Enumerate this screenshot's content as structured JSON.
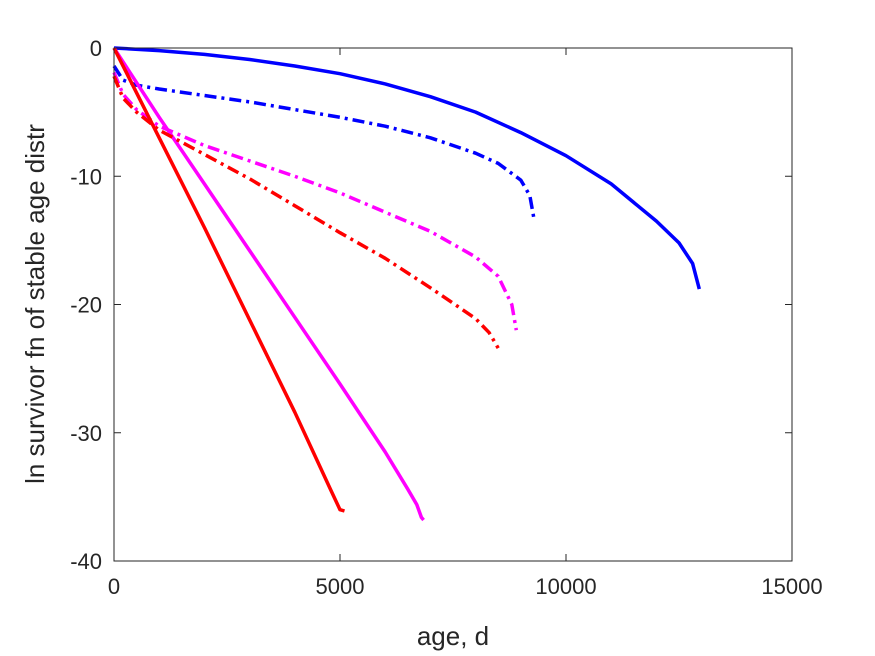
{
  "chart_data": {
    "type": "line",
    "xlabel": "age, d",
    "ylabel": "ln survivor fn of stable age distr",
    "xlim": [
      0,
      15000
    ],
    "ylim": [
      -40,
      0
    ],
    "xticks": [
      0,
      5000,
      10000,
      15000
    ],
    "yticks": [
      0,
      -10,
      -20,
      -30,
      -40
    ],
    "xtick_labels": [
      "0",
      "5000",
      "10000",
      "15000"
    ],
    "ytick_labels": [
      "0",
      "-10",
      "-20",
      "-30",
      "-40"
    ],
    "grid": false,
    "legend": "none",
    "series": [
      {
        "color": "#0000ff",
        "style": "solid",
        "x": [
          0,
          1000,
          2000,
          3000,
          4000,
          5000,
          6000,
          7000,
          8000,
          9000,
          10000,
          11000,
          12000,
          12500,
          12800,
          12950
        ],
        "y": [
          0,
          -0.2,
          -0.5,
          -0.9,
          -1.4,
          -2.0,
          -2.8,
          -3.8,
          -5.0,
          -6.6,
          -8.4,
          -10.6,
          -13.5,
          -15.2,
          -16.8,
          -18.8
        ]
      },
      {
        "color": "#0000ff",
        "style": "dashdot",
        "x": [
          0,
          200,
          500,
          1000,
          2000,
          3000,
          4000,
          5000,
          6000,
          7000,
          8000,
          8500,
          9000,
          9200,
          9300
        ],
        "y": [
          -1.4,
          -2.5,
          -2.9,
          -3.2,
          -3.7,
          -4.2,
          -4.8,
          -5.4,
          -6.1,
          -7.0,
          -8.2,
          -9.0,
          -10.3,
          -11.5,
          -13.5
        ]
      },
      {
        "color": "#ff00ff",
        "style": "solid",
        "x": [
          0,
          1000,
          2000,
          3000,
          4000,
          5000,
          6000,
          6500,
          6700,
          6800,
          6850
        ],
        "y": [
          0,
          -5.4,
          -10.6,
          -15.8,
          -21.0,
          -26.2,
          -31.5,
          -34.4,
          -35.6,
          -36.6,
          -36.8
        ]
      },
      {
        "color": "#ff00ff",
        "style": "dashdot",
        "x": [
          0,
          200,
          500,
          1000,
          2000,
          3000,
          4000,
          5000,
          6000,
          7000,
          8000,
          8500,
          8800,
          8900
        ],
        "y": [
          -1.9,
          -3.6,
          -4.8,
          -6.1,
          -7.6,
          -8.8,
          -10.0,
          -11.3,
          -12.8,
          -14.3,
          -16.3,
          -17.8,
          -20.0,
          -22.0
        ]
      },
      {
        "color": "#ff0000",
        "style": "solid",
        "x": [
          0,
          1000,
          2000,
          3000,
          4000,
          4800,
          5000,
          5100
        ],
        "y": [
          0,
          -7.0,
          -14.0,
          -21.2,
          -28.4,
          -34.5,
          -36.0,
          -36.1
        ]
      },
      {
        "color": "#ff0000",
        "style": "dashdot",
        "x": [
          0,
          200,
          500,
          1000,
          2000,
          3000,
          4000,
          5000,
          6000,
          7000,
          8000,
          8300,
          8500
        ],
        "y": [
          -2.2,
          -3.9,
          -5.0,
          -6.4,
          -8.3,
          -10.2,
          -12.3,
          -14.4,
          -16.4,
          -18.7,
          -21.1,
          -22.2,
          -23.4
        ]
      }
    ]
  }
}
